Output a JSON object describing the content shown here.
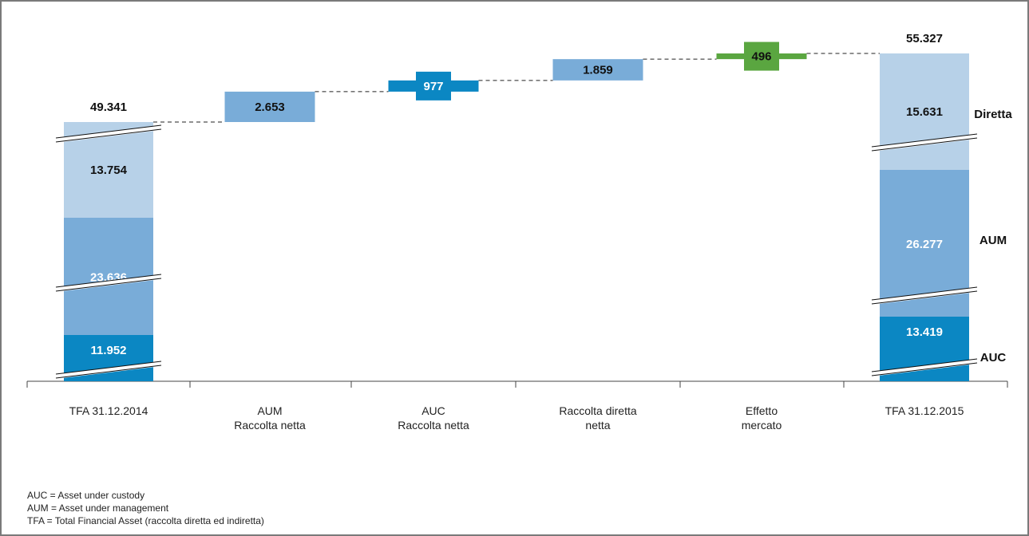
{
  "colors": {
    "auc": "#0b87c3",
    "aum": "#79acd8",
    "diretta": "#b7d1e8",
    "market": "#5aa640",
    "axis": "#444444",
    "text_dark": "#111111",
    "text_light": "#ffffff"
  },
  "chart_data": {
    "type": "waterfall",
    "categories": [
      [
        "TFA 31.12.2014"
      ],
      [
        "AUM",
        "Raccolta netta"
      ],
      [
        "AUC",
        "Raccolta netta"
      ],
      [
        "Raccolta diretta",
        "netta"
      ],
      [
        "Effetto",
        "mercato"
      ],
      [
        "TFA 31.12.2015"
      ]
    ],
    "totals": [
      {
        "category_index": 0,
        "total": 49341,
        "total_label": "49.341",
        "segments": [
          {
            "name": "AUC",
            "value": 11952,
            "label": "11.952"
          },
          {
            "name": "AUM",
            "value": 23636,
            "label": "23.636"
          },
          {
            "name": "Diretta",
            "value": 13754,
            "label": "13.754"
          }
        ]
      },
      {
        "category_index": 5,
        "total": 55327,
        "total_label": "55.327",
        "segments": [
          {
            "name": "AUC",
            "value": 13419,
            "label": "13.419"
          },
          {
            "name": "AUM",
            "value": 26277,
            "label": "26.277"
          },
          {
            "name": "Diretta",
            "value": 15631,
            "label": "15.631"
          }
        ]
      }
    ],
    "steps": [
      {
        "category_index": 1,
        "value": 2653,
        "label": "2.653",
        "style": "aum"
      },
      {
        "category_index": 2,
        "value": 977,
        "label": "977",
        "style": "auc"
      },
      {
        "category_index": 3,
        "value": 1859,
        "label": "1.859",
        "style": "aum"
      },
      {
        "category_index": 4,
        "value": 496,
        "label": "496",
        "style": "market"
      }
    ],
    "side_labels": [
      "Diretta",
      "AUM",
      "AUC"
    ],
    "axis_break": true
  },
  "notes": [
    "AUC = Asset under custody",
    "AUM = Asset under management",
    "TFA = Total Financial Asset (raccolta diretta ed indiretta)"
  ]
}
